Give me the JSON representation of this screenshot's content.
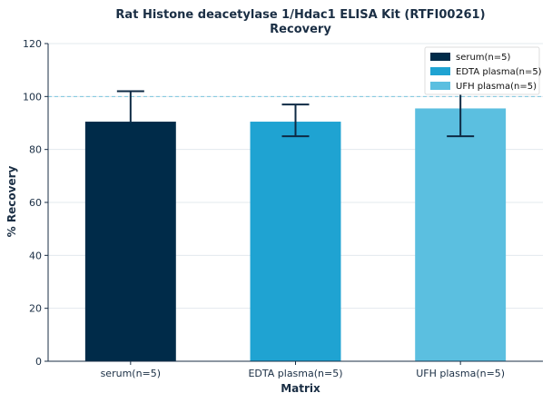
{
  "chart_data": {
    "type": "bar",
    "title": "Rat Histone deacetylase 1/Hdac1 ELISA Kit (RTFI00261)",
    "subtitle": "Recovery",
    "xlabel": "Matrix",
    "ylabel": "% Recovery",
    "ylim": [
      0,
      120
    ],
    "yticks": [
      0,
      20,
      40,
      60,
      80,
      100,
      120
    ],
    "grid": "horizontal",
    "reference_line": 100,
    "legend_position": "top-right",
    "categories": [
      "serum(n=5)",
      "EDTA plasma(n=5)",
      "UFH plasma(n=5)"
    ],
    "values": [
      90.5,
      90.5,
      95.5
    ],
    "error_low": [
      90.5,
      85,
      85
    ],
    "error_high": [
      102,
      97,
      106
    ],
    "colors": [
      "#002b49",
      "#1fa3d2",
      "#5bbfe0"
    ],
    "legend": [
      "serum(n=5)",
      "EDTA plasma(n=5)",
      "UFH plasma(n=5)"
    ]
  }
}
